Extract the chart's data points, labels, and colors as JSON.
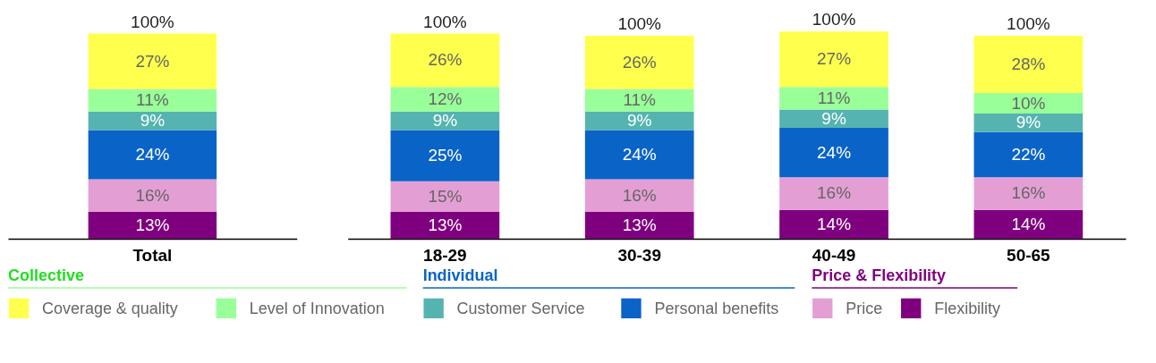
{
  "chart_data": {
    "type": "bar",
    "stacked": true,
    "categories": [
      "Total",
      "18-29",
      "30-39",
      "40-49",
      "50-65"
    ],
    "tick_labels": "x",
    "legend": "bottom",
    "totals": [
      "100%",
      "100%",
      "100%",
      "100%",
      "100%"
    ],
    "annotations": [
      "Collective",
      "Individual",
      "Price & Flexibility"
    ],
    "series": [
      {
        "name": "Flexibility",
        "color": "#7f007f",
        "values": [
          13,
          13,
          13,
          14,
          14
        ],
        "value_labels": [
          "13%",
          "13%",
          "13%",
          "14%",
          "14%"
        ]
      },
      {
        "name": "Price",
        "color": "#e39fd4",
        "values": [
          16,
          15,
          16,
          16,
          16
        ],
        "value_labels": [
          "16%",
          "15%",
          "16%",
          "16%",
          "16%"
        ]
      },
      {
        "name": "Personal benefits",
        "color": "#0a64c8",
        "values": [
          24,
          25,
          24,
          24,
          22
        ],
        "value_labels": [
          "24%",
          "25%",
          "24%",
          "24%",
          "22%"
        ]
      },
      {
        "name": "Customer Service",
        "color": "#55b4b0",
        "values": [
          9,
          9,
          9,
          9,
          9
        ],
        "value_labels": [
          "9%",
          "9%",
          "9%",
          "9%",
          "9%"
        ]
      },
      {
        "name": "Level of Innovation",
        "color": "#99ff99",
        "values": [
          11,
          12,
          11,
          11,
          10
        ],
        "value_labels": [
          "11%",
          "12%",
          "11%",
          "11%",
          "10%"
        ]
      },
      {
        "name": "Coverage & quality",
        "color": "#ffff4d",
        "values": [
          27,
          26,
          26,
          27,
          28
        ],
        "value_labels": [
          "27%",
          "26%",
          "26%",
          "27%",
          "28%"
        ]
      }
    ]
  }
}
